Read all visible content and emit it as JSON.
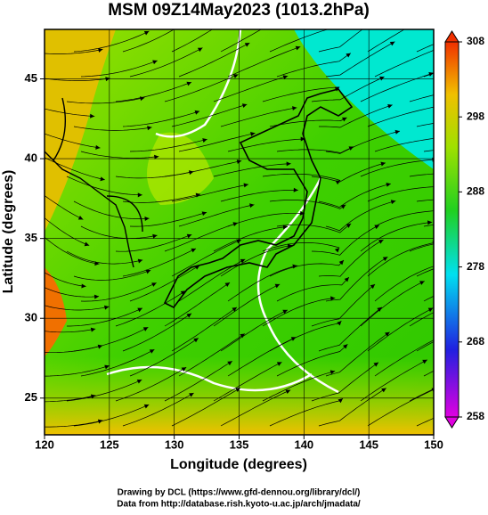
{
  "map": {
    "title": "MSM 09Z14May2023 (1013.2hPa)",
    "x_label": "Longitude (degrees)",
    "y_label": "Latitude  (degrees)",
    "xlim": [
      120,
      150
    ],
    "ylim": [
      22.7,
      48.1
    ],
    "xticks": [
      120,
      125,
      130,
      135,
      140,
      145,
      150
    ],
    "yticks": [
      25,
      30,
      35,
      40,
      45
    ],
    "grid": true,
    "colorbar": {
      "lim": [
        258,
        308
      ],
      "ticks": [
        258,
        268,
        278,
        288,
        298,
        308
      ]
    },
    "credits": [
      "Drawing by DCL (https://www.gfd-dennou.org/library/dcl/)",
      "Data from http://database.rish.kyoto-u.ac.jp/arch/jmadata/"
    ]
  }
}
